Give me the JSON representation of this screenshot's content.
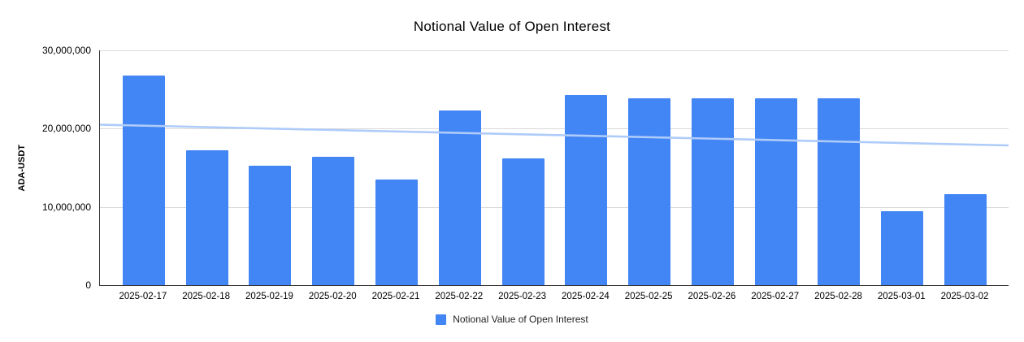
{
  "chart_data": {
    "type": "bar",
    "title": "Notional Value of Open Interest",
    "xlabel": "",
    "ylabel": "ADA-USDT",
    "categories": [
      "2025-02-17",
      "2025-02-18",
      "2025-02-19",
      "2025-02-20",
      "2025-02-21",
      "2025-02-22",
      "2025-02-23",
      "2025-02-24",
      "2025-02-25",
      "2025-02-26",
      "2025-02-27",
      "2025-02-28",
      "2025-03-01",
      "2025-03-02"
    ],
    "series": [
      {
        "name": "Notional Value of Open Interest",
        "values": [
          26800000,
          17200000,
          15300000,
          16400000,
          13500000,
          22300000,
          16200000,
          24300000,
          23900000,
          23900000,
          23900000,
          23900000,
          9400000,
          11600000
        ]
      }
    ],
    "trendline": {
      "start_value": 20500000,
      "end_value": 17850000
    },
    "ylim": [
      0,
      30000000
    ],
    "y_tick_labels": [
      "30,000,000",
      "20,000,000",
      "10,000,000",
      "0"
    ],
    "grid": true,
    "legend_position": "bottom"
  },
  "colors": {
    "bar": "#4285f4",
    "trendline": "#aecbfa",
    "gridline": "#d9d9d9",
    "axis": "#333333"
  },
  "legend": {
    "label": "Notional Value of Open Interest"
  }
}
